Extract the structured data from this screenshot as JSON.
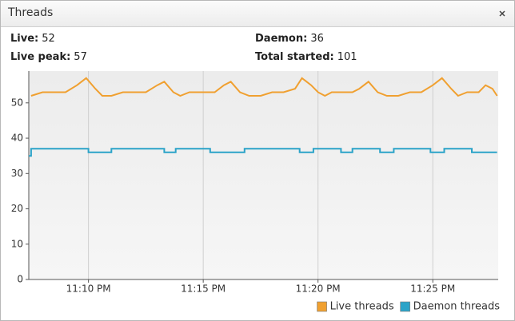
{
  "panel": {
    "title": "Threads"
  },
  "stats": [
    {
      "label": "Live:",
      "value": 52
    },
    {
      "label": "Live peak:",
      "value": 57
    },
    {
      "label": "Daemon:",
      "value": 36
    },
    {
      "label": "Total started:",
      "value": 101
    }
  ],
  "chart_data": {
    "type": "line",
    "xlim": [
      7.4,
      27.85
    ],
    "xticks": [
      {
        "value": 10,
        "label": "11:10 PM"
      },
      {
        "value": 15,
        "label": "11:15 PM"
      },
      {
        "value": 20,
        "label": "11:20 PM"
      },
      {
        "value": 25,
        "label": "11:25 PM"
      }
    ],
    "ylim": [
      0,
      59
    ],
    "yticks": [
      0,
      10,
      20,
      30,
      40,
      50
    ],
    "grid": "x",
    "legend": "bottom-right",
    "series": [
      {
        "name": "Live threads",
        "color": "#f0a030",
        "x": [
          7.5,
          8.0,
          8.5,
          9.0,
          9.5,
          9.9,
          10.3,
          10.6,
          11.0,
          11.5,
          12.0,
          12.5,
          13.0,
          13.3,
          13.7,
          14.0,
          14.4,
          15.0,
          15.5,
          15.9,
          16.2,
          16.6,
          17.0,
          17.5,
          18.0,
          18.5,
          19.0,
          19.3,
          19.7,
          20.0,
          20.3,
          20.6,
          21.0,
          21.5,
          21.8,
          22.2,
          22.6,
          23.0,
          23.5,
          24.0,
          24.5,
          25.0,
          25.4,
          25.8,
          26.1,
          26.5,
          27.0,
          27.3,
          27.6,
          27.8
        ],
        "values": [
          52,
          53,
          53,
          53,
          55,
          57,
          54,
          52,
          52,
          53,
          53,
          53,
          55,
          56,
          53,
          52,
          53,
          53,
          53,
          55,
          56,
          53,
          52,
          52,
          53,
          53,
          54,
          57,
          55,
          53,
          52,
          53,
          53,
          53,
          54,
          56,
          53,
          52,
          52,
          53,
          53,
          55,
          57,
          54,
          52,
          53,
          53,
          55,
          54,
          52
        ]
      },
      {
        "name": "Daemon threads",
        "color": "#2ba3c8",
        "x": [
          7.4,
          7.5,
          7.5,
          10.0,
          10.0,
          11.0,
          11.0,
          13.3,
          13.3,
          13.8,
          13.8,
          15.3,
          15.3,
          16.8,
          16.8,
          19.2,
          19.2,
          19.8,
          19.8,
          21.0,
          21.0,
          21.5,
          21.5,
          22.7,
          22.7,
          23.3,
          23.3,
          24.9,
          24.9,
          25.5,
          25.5,
          26.7,
          26.7,
          27.8
        ],
        "values": [
          35,
          35,
          37,
          37,
          36,
          36,
          37,
          37,
          36,
          36,
          37,
          37,
          36,
          36,
          37,
          37,
          36,
          36,
          37,
          37,
          36,
          36,
          37,
          37,
          36,
          36,
          37,
          37,
          36,
          36,
          37,
          37,
          36,
          36
        ]
      }
    ]
  }
}
